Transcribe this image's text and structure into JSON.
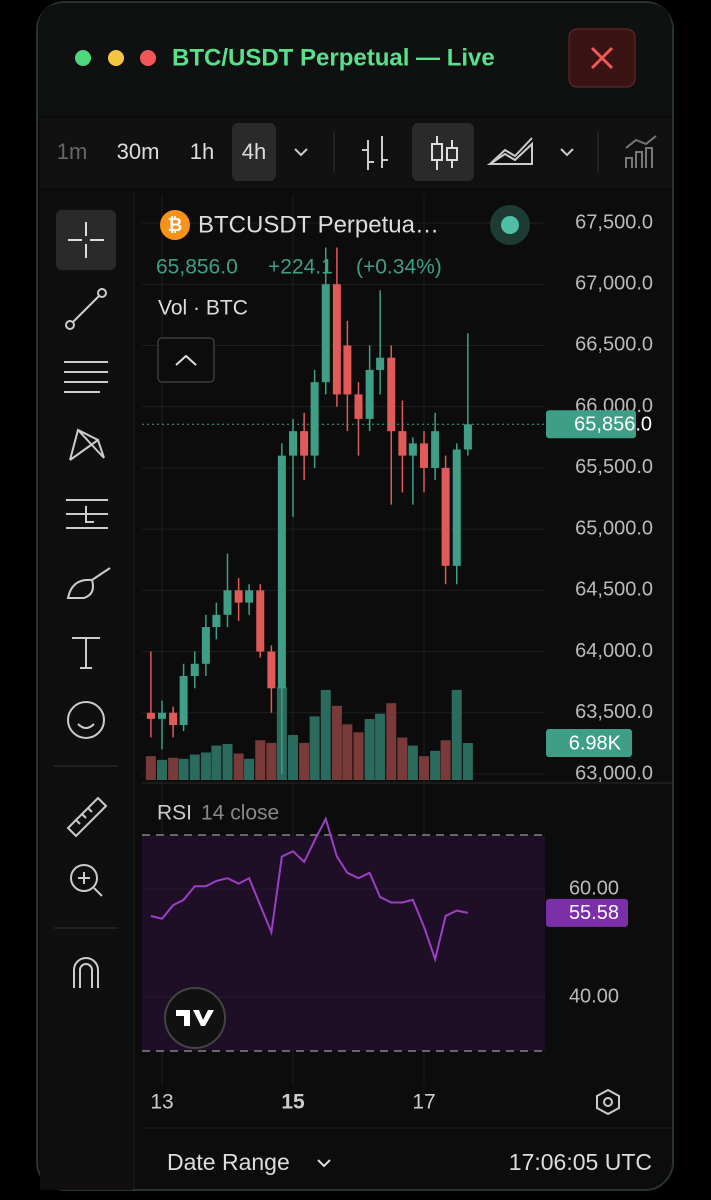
{
  "window": {
    "title": "BTC/USDT Perpetual — Live"
  },
  "toolbar": {
    "intervals": [
      "1m",
      "30m",
      "1h",
      "4h"
    ],
    "selected_interval": 3
  },
  "chart_data": {
    "type": "candlestick",
    "legend": {
      "symbol": "BTCUSDT Perpetua…",
      "price": "65,856.0",
      "change": "+224.1",
      "change_pct": "(+0.34%)",
      "volume_title": "Vol · BTC"
    },
    "up_color": "#3f9f86",
    "down_color": "#e05a5a",
    "x": [
      12.83,
      13.0,
      13.17,
      13.33,
      13.5,
      13.67,
      13.83,
      14.0,
      14.17,
      14.33,
      14.5,
      14.67,
      14.83,
      15.0,
      15.17,
      15.33,
      15.5,
      15.67,
      15.83,
      16.0,
      16.17,
      16.33,
      16.5,
      16.67,
      16.83,
      17.0,
      17.17,
      17.33,
      17.5,
      17.67
    ],
    "open": [
      63500,
      63450,
      63500,
      63400,
      63800,
      63900,
      64200,
      64300,
      64500,
      64400,
      64500,
      64000,
      63700,
      65600,
      65800,
      65600,
      66200,
      67000,
      66500,
      66100,
      65900,
      66300,
      66400,
      65800,
      65600,
      65700,
      65500,
      65500,
      64700,
      65650
    ],
    "high": [
      64000,
      63600,
      63550,
      63900,
      64000,
      64300,
      64400,
      64800,
      64600,
      64550,
      64550,
      64050,
      65700,
      65900,
      65950,
      66300,
      67300,
      67300,
      66700,
      66200,
      66500,
      66950,
      66500,
      66050,
      65750,
      65800,
      65950,
      65600,
      65700,
      66600
    ],
    "low": [
      63300,
      63200,
      63300,
      63350,
      63700,
      63800,
      64100,
      64200,
      64250,
      64300,
      63950,
      63500,
      63000,
      65100,
      65400,
      65500,
      66100,
      66000,
      65800,
      65600,
      65800,
      66100,
      65200,
      65300,
      65200,
      65300,
      65400,
      64550,
      64550,
      65600
    ],
    "close": [
      63450,
      63500,
      63400,
      63800,
      63900,
      64200,
      64300,
      64500,
      64400,
      64500,
      64000,
      63700,
      65600,
      65800,
      65600,
      66200,
      67000,
      66100,
      66100,
      65900,
      66300,
      66400,
      65800,
      65600,
      65700,
      65500,
      65800,
      64700,
      65650,
      65856
    ],
    "volume": [
      4.5,
      3.8,
      4.2,
      4.0,
      4.8,
      5.2,
      6.5,
      6.8,
      5.0,
      4.0,
      7.5,
      7.0,
      17.5,
      8.5,
      7.0,
      12.0,
      17.0,
      14.0,
      10.5,
      9.0,
      11.5,
      12.5,
      14.5,
      8.0,
      6.5,
      4.5,
      5.5,
      7.5,
      17.0,
      6.98
    ],
    "volume_ylim": [
      0,
      20
    ],
    "volume_label": {
      "value": 6.98,
      "label": "6.98K"
    },
    "ylim": [
      63000,
      67500
    ],
    "yticks": [
      {
        "value": 63000,
        "label": "63,000.0"
      },
      {
        "value": 63500,
        "label": "63,500.0"
      },
      {
        "value": 64000,
        "label": "64,000.0"
      },
      {
        "value": 64500,
        "label": "64,500.0"
      },
      {
        "value": 65000,
        "label": "65,000.0"
      },
      {
        "value": 65500,
        "label": "65,500.0"
      },
      {
        "value": 66000,
        "label": "66,000.0"
      },
      {
        "value": 66500,
        "label": "66,500.0"
      },
      {
        "value": 67000,
        "label": "67,000.0"
      },
      {
        "value": 67500,
        "label": "67,500.0"
      }
    ],
    "last_price": {
      "value": 65856,
      "label": "65,856.0"
    },
    "xticks": [
      13,
      15,
      17
    ],
    "xtick_bold": [
      false,
      true,
      false
    ],
    "rsi_title": "RSI",
    "rsi_params": "14 close",
    "rsi_color": "#9c3fc4",
    "rsi": [
      55,
      54.5,
      57,
      58,
      60.5,
      60.5,
      61.5,
      62,
      61,
      62,
      57,
      52,
      66,
      67,
      65,
      69,
      73,
      66,
      63,
      62,
      63,
      58.5,
      57.5,
      57.5,
      58,
      53,
      47,
      55,
      56,
      55.58
    ],
    "rsi_ylim": [
      30,
      70
    ],
    "rsi_yticks": [
      {
        "value": 40,
        "label": "40.00"
      },
      {
        "value": 60,
        "label": "60.00"
      }
    ],
    "rsi_bands": [
      30,
      70
    ],
    "rsi_label": {
      "value": 55.58,
      "label": "55.58"
    }
  },
  "footer": {
    "date_range": "Date Range",
    "time": "17:06:05 UTC"
  }
}
